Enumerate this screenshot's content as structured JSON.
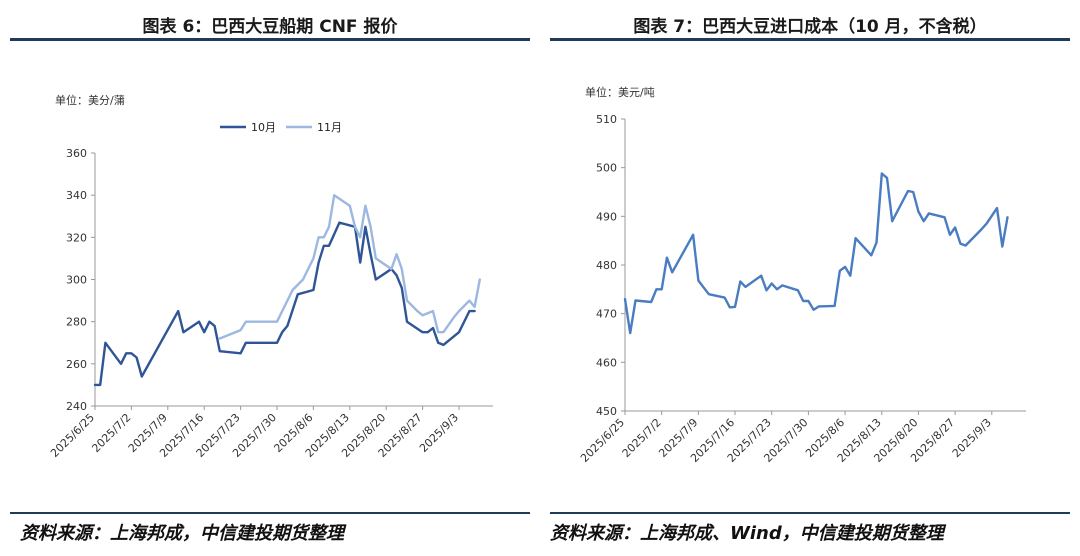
{
  "charts": [
    {
      "figure_title": "图表 6：巴西大豆船期 CNF 报价",
      "unit_label": "单位：美分/蒲",
      "source": "资料来源：上海邦成，中信建投期货整理"
    },
    {
      "figure_title": "图表 7：巴西大豆进口成本（10 月，不含税）",
      "unit_label": "单位：美元/吨",
      "source": "资料来源：上海邦成、Wind，中信建投期货整理"
    }
  ],
  "chart_data": [
    {
      "type": "line",
      "x_type": "date",
      "title": "",
      "xlabel": "",
      "ylabel": "",
      "ylim": [
        240,
        360
      ],
      "yticks": [
        240,
        260,
        280,
        300,
        320,
        340,
        360
      ],
      "xlim": [
        "2025-06-25",
        "2025-09-08"
      ],
      "xticks": [
        "2025/6/25",
        "2025/7/2",
        "2025/7/9",
        "2025/7/16",
        "2025/7/23",
        "2025/7/30",
        "2025/8/6",
        "2025/8/13",
        "2025/8/20",
        "2025/8/27",
        "2025/9/3"
      ],
      "legend": "top-center",
      "grid": false,
      "series": [
        {
          "name": "10月",
          "color": "#2f5597",
          "points": [
            [
              "2025-06-25",
              250
            ],
            [
              "2025-06-26",
              250
            ],
            [
              "2025-06-27",
              270
            ],
            [
              "2025-06-30",
              260
            ],
            [
              "2025-07-01",
              265
            ],
            [
              "2025-07-02",
              265
            ],
            [
              "2025-07-03",
              263
            ],
            [
              "2025-07-04",
              254
            ],
            [
              "2025-07-11",
              285
            ],
            [
              "2025-07-12",
              275
            ],
            [
              "2025-07-15",
              280
            ],
            [
              "2025-07-16",
              275
            ],
            [
              "2025-07-17",
              280
            ],
            [
              "2025-07-18",
              278
            ],
            [
              "2025-07-19",
              266
            ],
            [
              "2025-07-23",
              265
            ],
            [
              "2025-07-24",
              270
            ],
            [
              "2025-07-30",
              270
            ],
            [
              "2025-07-31",
              275
            ],
            [
              "2025-08-01",
              278
            ],
            [
              "2025-08-03",
              293
            ],
            [
              "2025-08-06",
              295
            ],
            [
              "2025-08-07",
              308
            ],
            [
              "2025-08-08",
              316
            ],
            [
              "2025-08-09",
              316
            ],
            [
              "2025-08-11",
              327
            ],
            [
              "2025-08-14",
              325
            ],
            [
              "2025-08-15",
              308
            ],
            [
              "2025-08-16",
              325
            ],
            [
              "2025-08-17",
              312
            ],
            [
              "2025-08-18",
              300
            ],
            [
              "2025-08-21",
              305
            ],
            [
              "2025-08-22",
              302
            ],
            [
              "2025-08-23",
              296
            ],
            [
              "2025-08-24",
              280
            ],
            [
              "2025-08-27",
              275
            ],
            [
              "2025-08-28",
              275
            ],
            [
              "2025-08-29",
              277
            ],
            [
              "2025-08-30",
              270
            ],
            [
              "2025-08-31",
              269
            ],
            [
              "2025-09-03",
              275
            ],
            [
              "2025-09-05",
              285
            ],
            [
              "2025-09-06",
              285
            ]
          ]
        },
        {
          "name": "11月",
          "color": "#9db8e0",
          "points": [
            [
              "2025-07-19",
              272
            ],
            [
              "2025-07-23",
              276
            ],
            [
              "2025-07-24",
              280
            ],
            [
              "2025-07-30",
              280
            ],
            [
              "2025-07-31",
              285
            ],
            [
              "2025-08-01",
              290
            ],
            [
              "2025-08-02",
              295
            ],
            [
              "2025-08-04",
              300
            ],
            [
              "2025-08-06",
              310
            ],
            [
              "2025-08-07",
              320
            ],
            [
              "2025-08-08",
              320
            ],
            [
              "2025-08-09",
              325
            ],
            [
              "2025-08-10",
              340
            ],
            [
              "2025-08-13",
              335
            ],
            [
              "2025-08-14",
              325
            ],
            [
              "2025-08-15",
              320
            ],
            [
              "2025-08-16",
              335
            ],
            [
              "2025-08-17",
              325
            ],
            [
              "2025-08-18",
              310
            ],
            [
              "2025-08-21",
              305
            ],
            [
              "2025-08-22",
              312
            ],
            [
              "2025-08-23",
              305
            ],
            [
              "2025-08-24",
              290
            ],
            [
              "2025-08-26",
              285
            ],
            [
              "2025-08-27",
              283
            ],
            [
              "2025-08-29",
              285
            ],
            [
              "2025-08-30",
              275
            ],
            [
              "2025-08-31",
              275
            ],
            [
              "2025-09-02",
              282
            ],
            [
              "2025-09-03",
              285
            ],
            [
              "2025-09-05",
              290
            ],
            [
              "2025-09-06",
              287
            ],
            [
              "2025-09-07",
              300
            ]
          ]
        }
      ]
    },
    {
      "type": "line",
      "x_type": "date",
      "title": "",
      "xlabel": "",
      "ylabel": "",
      "ylim": [
        450,
        510
      ],
      "yticks": [
        450,
        460,
        470,
        480,
        490,
        500,
        510
      ],
      "xlim": [
        "2025-06-25",
        "2025-09-08"
      ],
      "xticks": [
        "2025/6/25",
        "2025/7/2",
        "2025/7/9",
        "2025/7/16",
        "2025/7/23",
        "2025/7/30",
        "2025/8/6",
        "2025/8/13",
        "2025/8/20",
        "2025/8/27",
        "2025/9/3"
      ],
      "legend": "none",
      "grid": false,
      "series": [
        {
          "name": "",
          "color": "#4a7cc2",
          "points": [
            [
              "2025-06-25",
              473
            ],
            [
              "2025-06-26",
              466
            ],
            [
              "2025-06-27",
              472.7
            ],
            [
              "2025-06-30",
              472.4
            ],
            [
              "2025-07-01",
              475
            ],
            [
              "2025-07-02",
              475
            ],
            [
              "2025-07-03",
              481.5
            ],
            [
              "2025-07-04",
              478.5
            ],
            [
              "2025-07-08",
              486.2
            ],
            [
              "2025-07-09",
              476.8
            ],
            [
              "2025-07-11",
              474
            ],
            [
              "2025-07-14",
              473.3
            ],
            [
              "2025-07-15",
              471.3
            ],
            [
              "2025-07-16",
              471.4
            ],
            [
              "2025-07-17",
              476.6
            ],
            [
              "2025-07-18",
              475.5
            ],
            [
              "2025-07-21",
              477.8
            ],
            [
              "2025-07-22",
              474.8
            ],
            [
              "2025-07-23",
              476.2
            ],
            [
              "2025-07-24",
              475
            ],
            [
              "2025-07-25",
              475.8
            ],
            [
              "2025-07-28",
              474.8
            ],
            [
              "2025-07-29",
              472.6
            ],
            [
              "2025-07-30",
              472.6
            ],
            [
              "2025-07-31",
              470.8
            ],
            [
              "2025-08-01",
              471.5
            ],
            [
              "2025-08-04",
              471.6
            ],
            [
              "2025-08-05",
              478.8
            ],
            [
              "2025-08-06",
              479.6
            ],
            [
              "2025-08-07",
              477.8
            ],
            [
              "2025-08-08",
              485.5
            ],
            [
              "2025-08-11",
              482
            ],
            [
              "2025-08-12",
              484.6
            ],
            [
              "2025-08-13",
              498.8
            ],
            [
              "2025-08-14",
              497.9
            ],
            [
              "2025-08-15",
              489
            ],
            [
              "2025-08-18",
              495.2
            ],
            [
              "2025-08-19",
              495
            ],
            [
              "2025-08-20",
              491
            ],
            [
              "2025-08-21",
              489
            ],
            [
              "2025-08-22",
              490.6
            ],
            [
              "2025-08-25",
              489.8
            ],
            [
              "2025-08-26",
              486.2
            ],
            [
              "2025-08-27",
              487.7
            ],
            [
              "2025-08-28",
              484.4
            ],
            [
              "2025-08-29",
              484
            ],
            [
              "2025-09-01",
              487.3
            ],
            [
              "2025-09-02",
              488.5
            ],
            [
              "2025-09-04",
              491.7
            ],
            [
              "2025-09-05",
              483.8
            ],
            [
              "2025-09-06",
              489.8
            ]
          ]
        }
      ]
    }
  ]
}
